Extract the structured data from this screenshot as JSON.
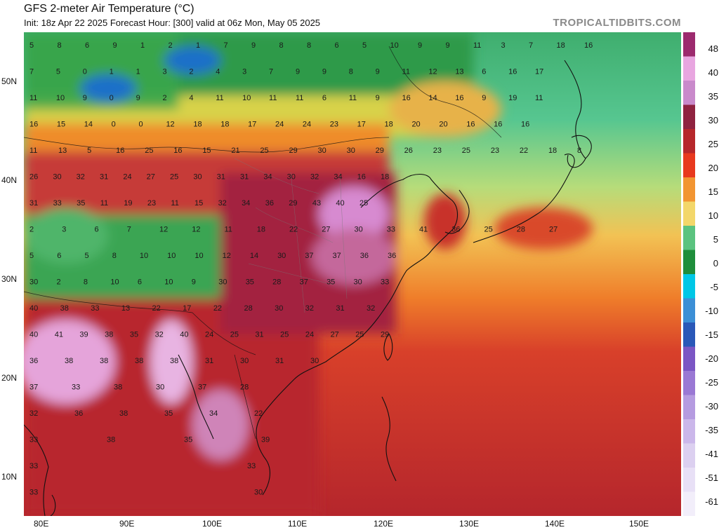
{
  "header": {
    "title": "GFS 2-meter Air Temperature (°C)",
    "subtitle": "Init: 18z Apr 22 2025   Forecast Hour: [300]   valid at 06z Mon, May 05 2025",
    "brand": "TROPICALTIDBITS.COM"
  },
  "axes": {
    "lat_labels": [
      "50N",
      "40N",
      "30N",
      "20N",
      "10N"
    ],
    "lon_labels": [
      "80E",
      "90E",
      "100E",
      "110E",
      "120E",
      "130E",
      "140E",
      "150E"
    ]
  },
  "colorbar": {
    "labels": [
      "48",
      "40",
      "35",
      "30",
      "25",
      "20",
      "15",
      "10",
      "5",
      "0",
      "-5",
      "-10",
      "-15",
      "-20",
      "-25",
      "-30",
      "-35",
      "-41",
      "-51",
      "-61"
    ],
    "colors": [
      "#9c2a6e",
      "#e8a6e0",
      "#c98acb",
      "#8f2340",
      "#b6272b",
      "#e8391e",
      "#f29532",
      "#f3d76a",
      "#5bc37f",
      "#1f8e3b",
      "#00c7e6",
      "#3c8fd6",
      "#2a58b8",
      "#7b56c4",
      "#9a78d4",
      "#b59be0",
      "#cbb7ea",
      "#dcd0f0",
      "#e8e0f6",
      "#f2eefa"
    ]
  },
  "map": {
    "colors": {
      "cold": "#1e6fd0",
      "cool": "#2e9a45",
      "mild": "#63c48a",
      "warm": "#e8c86a",
      "hot": "#e9651f",
      "very_hot": "#b8262a",
      "extreme": "#8e2743",
      "pink": "#e3a0d8",
      "sea_cool": "#58c7a0"
    },
    "point_values": [
      [
        "5",
        "8",
        "6",
        "9",
        "1",
        "2",
        "1",
        "7",
        "9",
        "8",
        "8",
        "6",
        "5",
        "10",
        "9",
        "9",
        "11",
        "3",
        "7",
        "18",
        "16"
      ],
      [
        "7",
        "5",
        "0",
        "1",
        "1",
        "3",
        "2",
        "4",
        "3",
        "7",
        "9",
        "9",
        "8",
        "9",
        "11",
        "12",
        "13",
        "6",
        "16",
        "17"
      ],
      [
        "11",
        "10",
        "9",
        "0",
        "9",
        "2",
        "4",
        "11",
        "10",
        "11",
        "11",
        "6",
        "11",
        "9",
        "16",
        "14",
        "16",
        "9",
        "19",
        "11"
      ],
      [
        "16",
        "15",
        "14",
        "0",
        "0",
        "12",
        "18",
        "18",
        "17",
        "24",
        "24",
        "23",
        "17",
        "18",
        "20",
        "20",
        "16",
        "16",
        "16"
      ],
      [
        "11",
        "13",
        "5",
        "16",
        "25",
        "16",
        "15",
        "21",
        "25",
        "29",
        "30",
        "30",
        "29",
        "26",
        "23",
        "25",
        "23",
        "22",
        "18",
        "8"
      ],
      [
        "26",
        "30",
        "32",
        "31",
        "24",
        "27",
        "25",
        "30",
        "31",
        "31",
        "34",
        "30",
        "32",
        "34",
        "16",
        "18"
      ],
      [
        "31",
        "33",
        "35",
        "11",
        "19",
        "23",
        "11",
        "15",
        "32",
        "34",
        "36",
        "29",
        "43",
        "40",
        "25"
      ],
      [
        "2",
        "3",
        "6",
        "7",
        "12",
        "12",
        "11",
        "18",
        "22",
        "27",
        "30",
        "33",
        "41",
        "36",
        "25",
        "28",
        "27"
      ],
      [
        "5",
        "6",
        "5",
        "8",
        "10",
        "10",
        "10",
        "12",
        "14",
        "30",
        "37",
        "37",
        "36",
        "36"
      ],
      [
        "30",
        "2",
        "8",
        "10",
        "6",
        "10",
        "9",
        "30",
        "35",
        "28",
        "37",
        "35",
        "30",
        "33"
      ],
      [
        "40",
        "38",
        "33",
        "13",
        "22",
        "17",
        "22",
        "28",
        "30",
        "32",
        "31",
        "32"
      ],
      [
        "40",
        "41",
        "39",
        "38",
        "35",
        "32",
        "40",
        "24",
        "25",
        "31",
        "25",
        "24",
        "27",
        "25",
        "29"
      ],
      [
        "36",
        "38",
        "38",
        "38",
        "38",
        "31",
        "30",
        "31",
        "30"
      ],
      [
        "37",
        "33",
        "38",
        "30",
        "37",
        "28"
      ],
      [
        "32",
        "36",
        "38",
        "35",
        "34",
        "22"
      ],
      [
        "33",
        "38",
        "35",
        "39"
      ],
      [
        "33",
        "33"
      ],
      [
        "33",
        "30"
      ]
    ]
  }
}
